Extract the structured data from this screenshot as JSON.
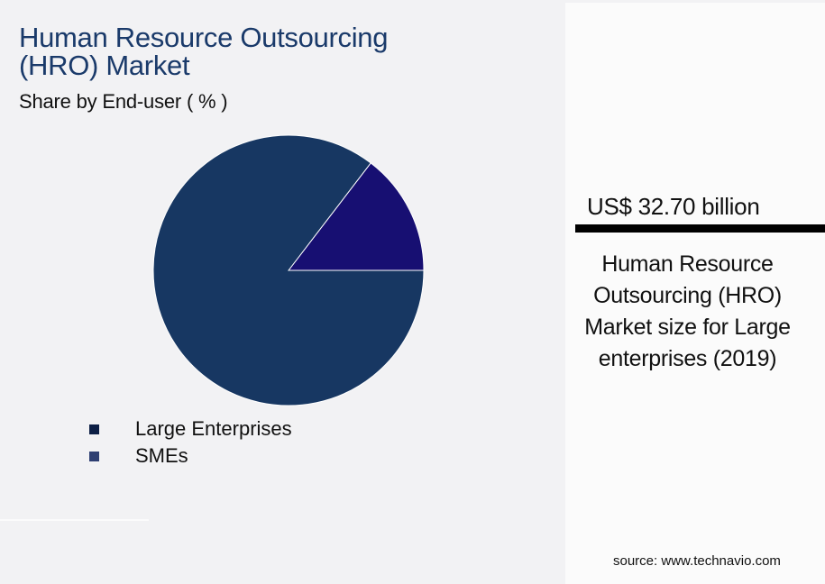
{
  "header": {
    "title_line1": "Human Resource Outsourcing",
    "title_line2": "(HRO) Market",
    "subtitle": "Share by End-user ( % )"
  },
  "legend": {
    "items": [
      {
        "label": "Large Enterprises",
        "color": "#0d1f45"
      },
      {
        "label": "SMEs",
        "color": "#2e3f72"
      }
    ]
  },
  "kpi": {
    "value": "US$ 32.70 billion",
    "description": "Human Resource Outsourcing (HRO) Market size for Large enterprises (2019)"
  },
  "footer": {
    "source": "source: www.technavio.com"
  },
  "colors": {
    "title": "#1a3a6a",
    "large_enterprises_slice": "#173762",
    "smes_slice": "#170f72",
    "background": "#f2f2f4",
    "panel": "#fbfbfb"
  },
  "chart_data": {
    "type": "pie",
    "title": "Human Resource Outsourcing (HRO) Market",
    "subtitle": "Share by End-user ( % )",
    "categories": [
      "Large Enterprises",
      "SMEs"
    ],
    "values": [
      85.4,
      14.6
    ],
    "colors": [
      "#173762",
      "#170f72"
    ],
    "legend_position": "bottom-left",
    "annotation": "US$ 32.70 billion — Human Resource Outsourcing (HRO) Market size for Large enterprises (2019)"
  }
}
